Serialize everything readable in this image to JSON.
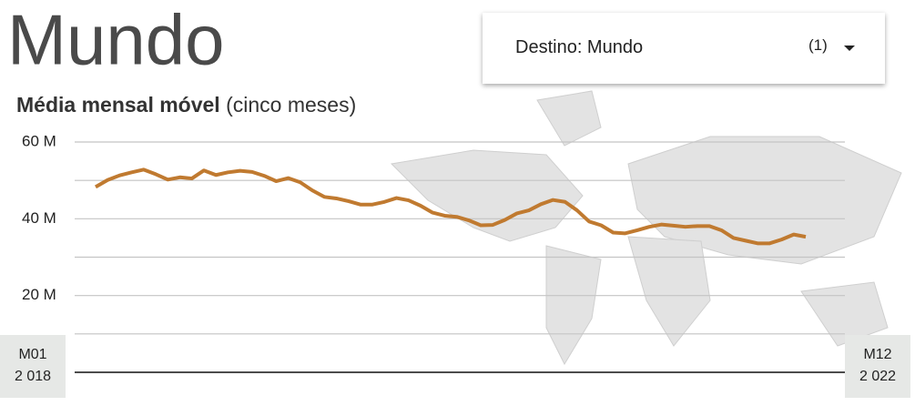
{
  "chart_data": {
    "type": "line",
    "title": "Mundo",
    "subtitle": "Média mensal móvel",
    "subtitle_note": "(cinco meses)",
    "categories": [
      "M01\n2 018",
      null,
      null,
      null,
      null,
      null,
      null,
      null,
      null,
      null,
      null,
      null,
      null,
      null,
      null,
      null,
      null,
      null,
      null,
      null,
      null,
      null,
      null,
      null,
      null,
      null,
      null,
      null,
      null,
      null,
      null,
      null,
      null,
      null,
      null,
      null,
      null,
      null,
      null,
      null,
      null,
      null,
      null,
      null,
      null,
      null,
      null,
      null,
      null,
      null,
      null,
      null,
      null,
      null,
      null,
      null,
      null,
      null,
      null,
      "M12\n2 022"
    ],
    "values": [
      48.3,
      50.1,
      51.3,
      52.1,
      52.8,
      51.6,
      50.2,
      50.8,
      50.5,
      52.6,
      51.4,
      52.1,
      52.5,
      52.2,
      51.2,
      49.8,
      50.6,
      49.5,
      47.4,
      45.7,
      45.3,
      44.6,
      43.7,
      43.7,
      44.4,
      45.4,
      44.8,
      43.4,
      41.6,
      40.8,
      40.5,
      39.6,
      38.3,
      38.4,
      39.7,
      41.4,
      42.2,
      43.8,
      44.9,
      44.4,
      42.2,
      39.3,
      38.3,
      36.4,
      36.2,
      37.0,
      37.9,
      38.5,
      38.2,
      37.9,
      38.1,
      38.1,
      37.0,
      35.0,
      34.3,
      33.6,
      33.6,
      34.6,
      35.9,
      35.3
    ],
    "color": "#c07a30",
    "ylim": [
      0,
      60
    ],
    "yticks": [
      {
        "value": 20,
        "label": "20 M"
      },
      {
        "value": 40,
        "label": "40 M"
      },
      {
        "value": 60,
        "label": "60 M"
      }
    ],
    "minor_yticks": [
      10,
      30,
      50
    ],
    "grid": true
  },
  "filter": {
    "label": "Destino: Mundo",
    "count": "(1)"
  }
}
